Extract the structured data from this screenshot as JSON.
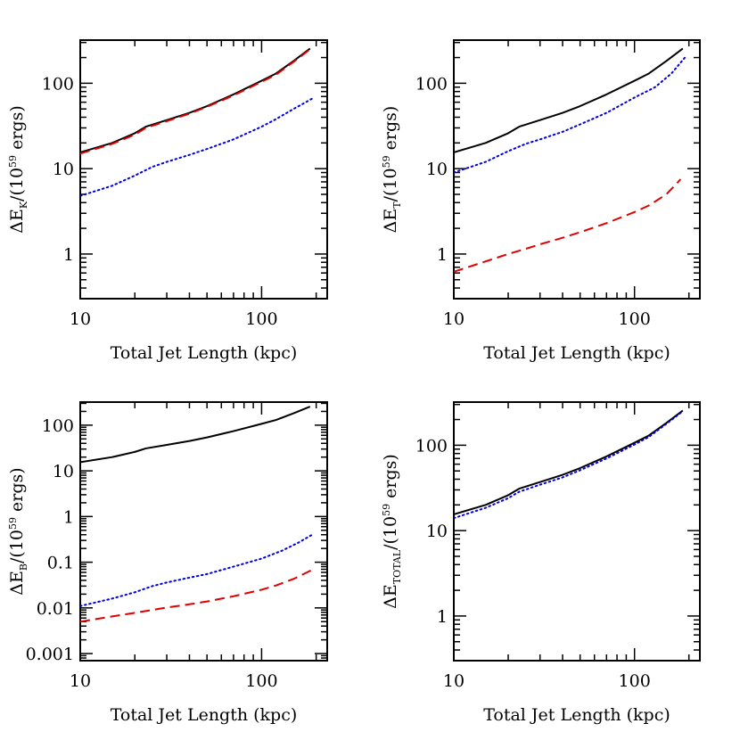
{
  "chart_data": [
    {
      "id": "ek",
      "type": "line",
      "xlabel": "Total Jet Length (kpc)",
      "ylabel": {
        "main": "ΔE",
        "sub": "K",
        "mid": "/(10",
        "sup": "59",
        "end": " ergs)"
      },
      "xscale": "log",
      "yscale": "log",
      "xlim": [
        10,
        230
      ],
      "ylim": [
        0.3,
        320
      ],
      "xticks": [
        {
          "value": 10,
          "label": "10"
        },
        {
          "value": 100,
          "label": "100"
        }
      ],
      "yticks": [
        {
          "value": 1,
          "label": "1"
        },
        {
          "value": 10,
          "label": "10"
        },
        {
          "value": 100,
          "label": "100"
        }
      ],
      "series": [
        {
          "style": "solid",
          "color": "#000000",
          "points": [
            [
              10,
              15.5
            ],
            [
              15,
              20
            ],
            [
              20,
              26
            ],
            [
              23,
              31
            ],
            [
              30,
              37
            ],
            [
              40,
              45
            ],
            [
              50,
              54
            ],
            [
              70,
              74
            ],
            [
              100,
              107
            ],
            [
              120,
              130
            ],
            [
              150,
              182
            ],
            [
              185,
              255
            ]
          ]
        },
        {
          "style": "dashed",
          "color": "#e00000",
          "points": [
            [
              10,
              15
            ],
            [
              15,
              19.5
            ],
            [
              20,
              25
            ],
            [
              23,
              30
            ],
            [
              30,
              36
            ],
            [
              40,
              44
            ],
            [
              50,
              53
            ],
            [
              70,
              72
            ],
            [
              100,
              104
            ],
            [
              120,
              126
            ],
            [
              150,
              178
            ],
            [
              185,
              250
            ]
          ]
        },
        {
          "style": "dotted",
          "color": "#0000e0",
          "points": [
            [
              10,
              4.8
            ],
            [
              15,
              6.3
            ],
            [
              20,
              8.3
            ],
            [
              25,
              10.5
            ],
            [
              30,
              12
            ],
            [
              40,
              14.5
            ],
            [
              50,
              17
            ],
            [
              70,
              22
            ],
            [
              100,
              31
            ],
            [
              120,
              38
            ],
            [
              150,
              50
            ],
            [
              190,
              66
            ]
          ]
        }
      ]
    },
    {
      "id": "et",
      "type": "line",
      "xlabel": "Total Jet Length (kpc)",
      "ylabel": {
        "main": "ΔE",
        "sub": "T",
        "mid": "/(10",
        "sup": "59",
        "end": " ergs)"
      },
      "xscale": "log",
      "yscale": "log",
      "xlim": [
        10,
        230
      ],
      "ylim": [
        0.3,
        320
      ],
      "xticks": [
        {
          "value": 10,
          "label": "10"
        },
        {
          "value": 100,
          "label": "100"
        }
      ],
      "yticks": [
        {
          "value": 1,
          "label": "1"
        },
        {
          "value": 10,
          "label": "10"
        },
        {
          "value": 100,
          "label": "100"
        }
      ],
      "series": [
        {
          "style": "solid",
          "color": "#000000",
          "points": [
            [
              10,
              15.5
            ],
            [
              15,
              20
            ],
            [
              20,
              26
            ],
            [
              23,
              31
            ],
            [
              30,
              37
            ],
            [
              40,
              45
            ],
            [
              50,
              54
            ],
            [
              70,
              74
            ],
            [
              100,
              107
            ],
            [
              120,
              130
            ],
            [
              150,
              182
            ],
            [
              185,
              255
            ]
          ]
        },
        {
          "style": "dotted",
          "color": "#0000e0",
          "points": [
            [
              10,
              9
            ],
            [
              15,
              12
            ],
            [
              20,
              16
            ],
            [
              25,
              19.5
            ],
            [
              30,
              22
            ],
            [
              40,
              27
            ],
            [
              50,
              33
            ],
            [
              70,
              45
            ],
            [
              100,
              68
            ],
            [
              130,
              90
            ],
            [
              160,
              130
            ],
            [
              190,
              200
            ]
          ]
        },
        {
          "style": "dashed",
          "color": "#e00000",
          "points": [
            [
              10,
              0.62
            ],
            [
              15,
              0.82
            ],
            [
              20,
              1.0
            ],
            [
              25,
              1.15
            ],
            [
              30,
              1.3
            ],
            [
              40,
              1.55
            ],
            [
              50,
              1.8
            ],
            [
              70,
              2.3
            ],
            [
              100,
              3.1
            ],
            [
              120,
              3.7
            ],
            [
              150,
              5.0
            ],
            [
              180,
              7.5
            ]
          ]
        }
      ]
    },
    {
      "id": "eb",
      "type": "line",
      "xlabel": "Total Jet Length (kpc)",
      "ylabel": {
        "main": "ΔE",
        "sub": "B",
        "mid": "/(10",
        "sup": "59",
        "end": " ergs)"
      },
      "xscale": "log",
      "yscale": "log",
      "xlim": [
        10,
        230
      ],
      "ylim": [
        0.0007,
        320
      ],
      "xticks": [
        {
          "value": 10,
          "label": "10"
        },
        {
          "value": 100,
          "label": "100"
        }
      ],
      "yticks": [
        {
          "value": 0.001,
          "label": "0.001"
        },
        {
          "value": 0.01,
          "label": "0.01"
        },
        {
          "value": 0.1,
          "label": "0.1"
        },
        {
          "value": 1,
          "label": "1"
        },
        {
          "value": 10,
          "label": "10"
        },
        {
          "value": 100,
          "label": "100"
        }
      ],
      "series": [
        {
          "style": "solid",
          "color": "#000000",
          "points": [
            [
              10,
              15.5
            ],
            [
              15,
              20
            ],
            [
              20,
              26
            ],
            [
              23,
              31
            ],
            [
              30,
              37
            ],
            [
              40,
              45
            ],
            [
              50,
              54
            ],
            [
              70,
              74
            ],
            [
              100,
              107
            ],
            [
              120,
              130
            ],
            [
              150,
              182
            ],
            [
              185,
              255
            ]
          ]
        },
        {
          "style": "dotted",
          "color": "#0000e0",
          "points": [
            [
              10,
              0.011
            ],
            [
              15,
              0.016
            ],
            [
              20,
              0.022
            ],
            [
              25,
              0.03
            ],
            [
              30,
              0.036
            ],
            [
              40,
              0.046
            ],
            [
              50,
              0.055
            ],
            [
              70,
              0.08
            ],
            [
              100,
              0.12
            ],
            [
              130,
              0.18
            ],
            [
              160,
              0.27
            ],
            [
              190,
              0.4
            ]
          ]
        },
        {
          "style": "dashed",
          "color": "#e00000",
          "points": [
            [
              10,
              0.005
            ],
            [
              15,
              0.0065
            ],
            [
              20,
              0.0078
            ],
            [
              25,
              0.009
            ],
            [
              30,
              0.0102
            ],
            [
              40,
              0.012
            ],
            [
              50,
              0.0138
            ],
            [
              70,
              0.018
            ],
            [
              100,
              0.025
            ],
            [
              120,
              0.031
            ],
            [
              150,
              0.043
            ],
            [
              190,
              0.068
            ]
          ]
        }
      ]
    },
    {
      "id": "etotal",
      "type": "line",
      "xlabel": "Total Jet Length (kpc)",
      "ylabel": {
        "main": "ΔE",
        "sub": "TOTAL",
        "mid": "/(10",
        "sup": "59",
        "end": " ergs)"
      },
      "xscale": "log",
      "yscale": "log",
      "xlim": [
        10,
        230
      ],
      "ylim": [
        0.3,
        320
      ],
      "xticks": [
        {
          "value": 10,
          "label": "10"
        },
        {
          "value": 100,
          "label": "100"
        }
      ],
      "yticks": [
        {
          "value": 1,
          "label": "1"
        },
        {
          "value": 10,
          "label": "10"
        },
        {
          "value": 100,
          "label": "100"
        }
      ],
      "series": [
        {
          "style": "solid",
          "color": "#000000",
          "points": [
            [
              10,
              15.5
            ],
            [
              15,
              20
            ],
            [
              20,
              26
            ],
            [
              23,
              31
            ],
            [
              30,
              37
            ],
            [
              40,
              45
            ],
            [
              50,
              54
            ],
            [
              70,
              74
            ],
            [
              100,
              107
            ],
            [
              120,
              130
            ],
            [
              150,
              182
            ],
            [
              185,
              255
            ]
          ]
        },
        {
          "style": "dotted",
          "color": "#0000e0",
          "points": [
            [
              10,
              14
            ],
            [
              15,
              18.5
            ],
            [
              20,
              24
            ],
            [
              23,
              28.5
            ],
            [
              30,
              34.5
            ],
            [
              40,
              42
            ],
            [
              50,
              51
            ],
            [
              70,
              70
            ],
            [
              100,
              102
            ],
            [
              120,
              125
            ],
            [
              150,
              178
            ],
            [
              185,
              250
            ]
          ]
        }
      ]
    }
  ]
}
